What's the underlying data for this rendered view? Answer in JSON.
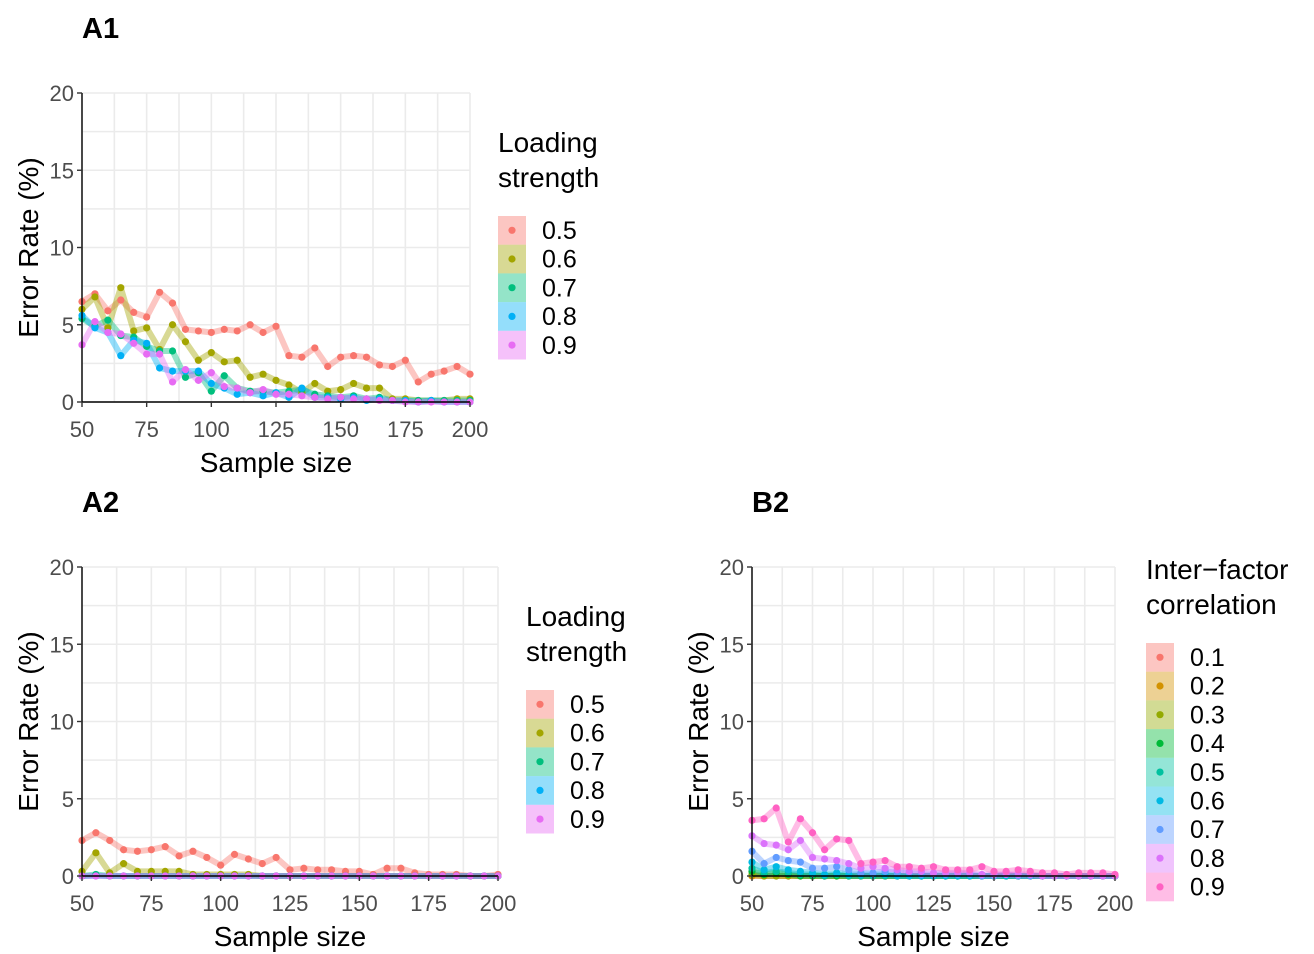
{
  "chart_data": [
    {
      "panel": "A1",
      "type": "line",
      "xlabel": "Sample size",
      "ylabel": "Error Rate (%)",
      "xlim": [
        50,
        200
      ],
      "ylim": [
        0,
        20
      ],
      "xticks": [
        50,
        75,
        100,
        125,
        150,
        175,
        200
      ],
      "yticks": [
        0,
        5,
        10,
        15,
        20
      ],
      "grid": true,
      "legend_title": [
        "Loading",
        "strength"
      ],
      "legend_position": "right",
      "x": [
        50,
        55,
        60,
        65,
        70,
        75,
        80,
        85,
        90,
        95,
        100,
        105,
        110,
        115,
        120,
        125,
        130,
        135,
        140,
        145,
        150,
        155,
        160,
        165,
        170,
        175,
        180,
        185,
        190,
        195,
        200
      ],
      "series": [
        {
          "name": "0.5",
          "color": "#F8766D",
          "values": [
            6.5,
            7.0,
            5.9,
            6.6,
            5.8,
            5.5,
            7.1,
            6.4,
            4.7,
            4.6,
            4.5,
            4.7,
            4.6,
            5.0,
            4.5,
            4.9,
            3.0,
            2.9,
            3.5,
            2.3,
            2.9,
            3.0,
            2.9,
            2.4,
            2.3,
            2.7,
            1.3,
            1.8,
            2.0,
            2.3,
            1.8
          ]
        },
        {
          "name": "0.6",
          "color": "#A3A500",
          "values": [
            6.0,
            6.8,
            4.8,
            7.4,
            4.6,
            4.8,
            3.4,
            5.0,
            3.9,
            2.7,
            3.2,
            2.6,
            2.7,
            1.6,
            1.8,
            1.4,
            1.1,
            0.6,
            1.2,
            0.7,
            0.8,
            1.2,
            0.9,
            0.9,
            0.2,
            0.2,
            0.1,
            0.1,
            0.1,
            0.2,
            0.2
          ]
        },
        {
          "name": "0.7",
          "color": "#00BF7D",
          "values": [
            5.4,
            4.9,
            5.3,
            4.3,
            4.2,
            3.6,
            3.3,
            3.3,
            1.6,
            1.9,
            0.7,
            1.7,
            0.9,
            0.7,
            0.7,
            0.6,
            0.7,
            0.8,
            0.5,
            0.4,
            0.3,
            0.4,
            0.2,
            0.3,
            0.1,
            0.1,
            0.1,
            0.1,
            0.1,
            0.1,
            0.1
          ]
        },
        {
          "name": "0.8",
          "color": "#00B0F6",
          "values": [
            5.6,
            4.8,
            4.5,
            3.0,
            4.0,
            3.8,
            2.2,
            2.0,
            2.0,
            2.0,
            1.2,
            0.9,
            0.5,
            0.6,
            0.4,
            0.6,
            0.3,
            0.9,
            0.3,
            0.3,
            0.2,
            0.3,
            0.1,
            0.2,
            0.1,
            0.1,
            0.0,
            0.1,
            0.0,
            0.0,
            0.0
          ]
        },
        {
          "name": "0.9",
          "color": "#E76BF3",
          "values": [
            3.7,
            5.2,
            4.5,
            4.4,
            3.8,
            3.1,
            3.1,
            1.3,
            2.1,
            1.4,
            1.9,
            1.0,
            0.9,
            0.6,
            0.8,
            0.5,
            0.5,
            0.4,
            0.3,
            0.2,
            0.3,
            0.2,
            0.2,
            0.1,
            0.1,
            0.0,
            0.0,
            0.0,
            0.0,
            0.0,
            0.0
          ]
        }
      ]
    },
    {
      "panel": "A2",
      "type": "line",
      "xlabel": "Sample size",
      "ylabel": "Error Rate (%)",
      "xlim": [
        50,
        200
      ],
      "ylim": [
        0,
        20
      ],
      "xticks": [
        50,
        75,
        100,
        125,
        150,
        175,
        200
      ],
      "yticks": [
        0,
        5,
        10,
        15,
        20
      ],
      "grid": true,
      "legend_title": [
        "Loading",
        "strength"
      ],
      "legend_position": "right",
      "x": [
        50,
        55,
        60,
        65,
        70,
        75,
        80,
        85,
        90,
        95,
        100,
        105,
        110,
        115,
        120,
        125,
        130,
        135,
        140,
        145,
        150,
        155,
        160,
        165,
        170,
        175,
        180,
        185,
        190,
        195,
        200
      ],
      "series": [
        {
          "name": "0.5",
          "color": "#F8766D",
          "values": [
            2.3,
            2.8,
            2.3,
            1.7,
            1.6,
            1.7,
            1.9,
            1.3,
            1.6,
            1.2,
            0.7,
            1.4,
            1.1,
            0.8,
            1.2,
            0.4,
            0.5,
            0.4,
            0.4,
            0.3,
            0.3,
            0.1,
            0.5,
            0.5,
            0.2,
            0.1,
            0.1,
            0.1,
            0.0,
            0.0,
            0.1
          ]
        },
        {
          "name": "0.6",
          "color": "#A3A500",
          "values": [
            0.3,
            1.5,
            0.2,
            0.8,
            0.3,
            0.3,
            0.3,
            0.3,
            0.1,
            0.1,
            0.1,
            0.1,
            0.1,
            0.0,
            0.0,
            0.0,
            0.0,
            0.0,
            0.0,
            0.0,
            0.0,
            0.0,
            0.0,
            0.0,
            0.0,
            0.0,
            0.0,
            0.0,
            0.0,
            0.0,
            0.0
          ]
        },
        {
          "name": "0.7",
          "color": "#00BF7D",
          "values": [
            0.0,
            0.1,
            0.0,
            0.0,
            0.0,
            0.0,
            0.0,
            0.0,
            0.0,
            0.0,
            0.0,
            0.0,
            0.0,
            0.0,
            0.0,
            0.0,
            0.0,
            0.0,
            0.0,
            0.0,
            0.0,
            0.0,
            0.0,
            0.0,
            0.0,
            0.0,
            0.0,
            0.0,
            0.0,
            0.0,
            0.0
          ]
        },
        {
          "name": "0.8",
          "color": "#00B0F6",
          "values": [
            0.0,
            0.0,
            0.0,
            0.0,
            0.0,
            0.0,
            0.0,
            0.0,
            0.0,
            0.0,
            0.0,
            0.0,
            0.0,
            0.0,
            0.0,
            0.0,
            0.0,
            0.0,
            0.0,
            0.0,
            0.0,
            0.0,
            0.0,
            0.0,
            0.0,
            0.0,
            0.0,
            0.0,
            0.0,
            0.0,
            0.0
          ]
        },
        {
          "name": "0.9",
          "color": "#E76BF3",
          "values": [
            0.0,
            0.0,
            0.0,
            0.0,
            0.0,
            0.0,
            0.0,
            0.0,
            0.0,
            0.0,
            0.0,
            0.0,
            0.0,
            0.0,
            0.0,
            0.0,
            0.0,
            0.0,
            0.0,
            0.0,
            0.0,
            0.0,
            0.0,
            0.0,
            0.0,
            0.0,
            0.0,
            0.0,
            0.0,
            0.0,
            0.0
          ]
        }
      ]
    },
    {
      "panel": "B2",
      "type": "line",
      "xlabel": "Sample size",
      "ylabel": "Error Rate (%)",
      "xlim": [
        50,
        200
      ],
      "ylim": [
        0,
        20
      ],
      "xticks": [
        50,
        75,
        100,
        125,
        150,
        175,
        200
      ],
      "yticks": [
        0,
        5,
        10,
        15,
        20
      ],
      "grid": true,
      "legend_title": [
        "Inter−factor",
        "correlation"
      ],
      "legend_position": "right",
      "x": [
        50,
        55,
        60,
        65,
        70,
        75,
        80,
        85,
        90,
        95,
        100,
        105,
        110,
        115,
        120,
        125,
        130,
        135,
        140,
        145,
        150,
        155,
        160,
        165,
        170,
        175,
        180,
        185,
        190,
        195,
        200
      ],
      "series": [
        {
          "name": "0.1",
          "color": "#F8766D",
          "values": [
            0.0,
            0.0,
            0.0,
            0.0,
            0.0,
            0.0,
            0.0,
            0.0,
            0.0,
            0.0,
            0.0,
            0.0,
            0.0,
            0.0,
            0.0,
            0.0,
            0.0,
            0.0,
            0.0,
            0.0,
            0.0,
            0.0,
            0.0,
            0.0,
            0.0,
            0.0,
            0.0,
            0.0,
            0.0,
            0.0,
            0.0
          ]
        },
        {
          "name": "0.2",
          "color": "#D39200",
          "values": [
            0.0,
            0.0,
            0.0,
            0.0,
            0.0,
            0.0,
            0.0,
            0.0,
            0.0,
            0.0,
            0.0,
            0.0,
            0.0,
            0.0,
            0.0,
            0.0,
            0.0,
            0.0,
            0.0,
            0.0,
            0.0,
            0.0,
            0.0,
            0.0,
            0.0,
            0.0,
            0.0,
            0.0,
            0.0,
            0.0,
            0.0
          ]
        },
        {
          "name": "0.3",
          "color": "#93AA00",
          "values": [
            0.1,
            0.0,
            0.0,
            0.0,
            0.0,
            0.0,
            0.0,
            0.0,
            0.0,
            0.0,
            0.0,
            0.0,
            0.0,
            0.0,
            0.0,
            0.0,
            0.0,
            0.0,
            0.0,
            0.0,
            0.0,
            0.0,
            0.0,
            0.0,
            0.0,
            0.0,
            0.0,
            0.0,
            0.0,
            0.0,
            0.0
          ]
        },
        {
          "name": "0.4",
          "color": "#00BA38",
          "values": [
            0.3,
            0.1,
            0.2,
            0.1,
            0.0,
            0.0,
            0.0,
            0.0,
            0.0,
            0.0,
            0.0,
            0.0,
            0.0,
            0.0,
            0.0,
            0.0,
            0.0,
            0.0,
            0.0,
            0.0,
            0.0,
            0.0,
            0.0,
            0.0,
            0.0,
            0.0,
            0.0,
            0.0,
            0.0,
            0.0,
            0.0
          ]
        },
        {
          "name": "0.5",
          "color": "#00C19F",
          "values": [
            0.5,
            0.2,
            0.3,
            0.2,
            0.1,
            0.1,
            0.0,
            0.1,
            0.0,
            0.0,
            0.0,
            0.0,
            0.0,
            0.0,
            0.0,
            0.0,
            0.0,
            0.0,
            0.0,
            0.0,
            0.0,
            0.0,
            0.0,
            0.0,
            0.0,
            0.0,
            0.0,
            0.0,
            0.0,
            0.0,
            0.0
          ]
        },
        {
          "name": "0.6",
          "color": "#00B9E3",
          "values": [
            0.9,
            0.4,
            0.6,
            0.4,
            0.3,
            0.2,
            0.1,
            0.2,
            0.1,
            0.1,
            0.1,
            0.1,
            0.0,
            0.0,
            0.0,
            0.0,
            0.0,
            0.0,
            0.0,
            0.0,
            0.0,
            0.0,
            0.0,
            0.0,
            0.0,
            0.0,
            0.0,
            0.0,
            0.0,
            0.0,
            0.0
          ]
        },
        {
          "name": "0.7",
          "color": "#619CFF",
          "values": [
            1.6,
            0.8,
            1.2,
            1.0,
            0.9,
            0.5,
            0.5,
            0.6,
            0.4,
            0.2,
            0.2,
            0.3,
            0.2,
            0.2,
            0.1,
            0.1,
            0.1,
            0.1,
            0.1,
            0.0,
            0.0,
            0.1,
            0.0,
            0.0,
            0.0,
            0.0,
            0.0,
            0.0,
            0.0,
            0.0,
            0.0
          ]
        },
        {
          "name": "0.8",
          "color": "#DB72FB",
          "values": [
            2.6,
            2.1,
            2.0,
            1.7,
            2.3,
            1.2,
            1.1,
            1.0,
            0.8,
            0.5,
            0.6,
            0.5,
            0.4,
            0.3,
            0.3,
            0.2,
            0.2,
            0.2,
            0.2,
            0.1,
            0.1,
            0.1,
            0.1,
            0.1,
            0.0,
            0.0,
            0.0,
            0.0,
            0.0,
            0.0,
            0.0
          ]
        },
        {
          "name": "0.9",
          "color": "#FF61C3",
          "values": [
            3.6,
            3.7,
            4.4,
            2.2,
            3.7,
            2.8,
            1.7,
            2.4,
            2.3,
            0.8,
            0.9,
            1.0,
            0.6,
            0.6,
            0.5,
            0.6,
            0.4,
            0.4,
            0.4,
            0.6,
            0.3,
            0.3,
            0.4,
            0.3,
            0.2,
            0.2,
            0.1,
            0.2,
            0.2,
            0.2,
            0.1
          ]
        }
      ]
    }
  ]
}
